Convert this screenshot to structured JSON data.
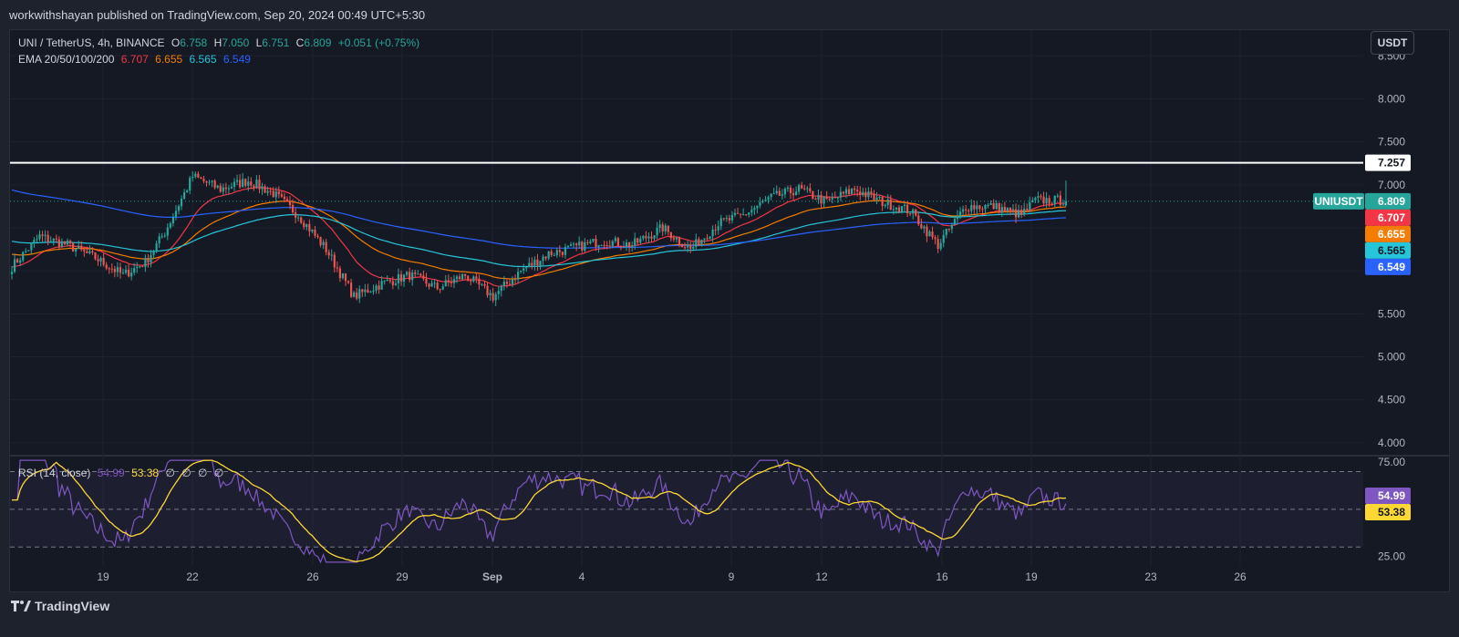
{
  "header": {
    "published": "workwithshayan published on TradingView.com, Sep 20, 2024 00:49 UTC+5:30"
  },
  "legend": {
    "symbol": "UNI / TetherUS, 4h, BINANCE",
    "o_label": "O",
    "open": "6.758",
    "h_label": "H",
    "high": "7.050",
    "l_label": "L",
    "low": "6.751",
    "c_label": "C",
    "close": "6.809",
    "change": "+0.051 (+0.75%)",
    "ema_label": "EMA 20/50/100/200",
    "ema20": "6.707",
    "ema50": "6.655",
    "ema100": "6.565",
    "ema200": "6.549"
  },
  "rsi_legend": {
    "label": "RSI (14, close)",
    "rsi": "54.99",
    "ma": "53.38",
    "extras": [
      "∅",
      "∅",
      "∅",
      "∅"
    ]
  },
  "currency_button": "USDT",
  "brand": "TradingView",
  "colors": {
    "up": "#26a69a",
    "down": "#ef5350",
    "ema20": "#f23645",
    "ema50": "#f57c00",
    "ema100": "#26c6da",
    "ema200": "#2962ff",
    "rsi": "#7e57c2",
    "rsi_ma": "#fdd835"
  },
  "chart_data": [
    {
      "type": "candlestick",
      "symbol": "UNIUSDT",
      "timeframe": "4h",
      "x_ticks": [
        "19",
        "22",
        "26",
        "29",
        "Sep",
        "4",
        "9",
        "12",
        "16",
        "19",
        "23",
        "26"
      ],
      "y_ticks": [
        "4.000",
        "4.500",
        "5.000",
        "5.500",
        "6.000",
        "6.500",
        "7.000",
        "7.500",
        "8.000",
        "8.500"
      ],
      "ylim": [
        3.85,
        8.8
      ],
      "horizontal_line": {
        "value": 7.257,
        "label": "7.257"
      },
      "last_price": {
        "label": "UNIUSDT",
        "value": "6.809"
      },
      "price_labels": [
        "6.707",
        "6.655",
        "6.565",
        "6.549"
      ],
      "anchors": [
        [
          0,
          6.05
        ],
        [
          10,
          6.4
        ],
        [
          20,
          6.3
        ],
        [
          30,
          6.15
        ],
        [
          40,
          5.95
        ],
        [
          48,
          6.1
        ],
        [
          55,
          6.45
        ],
        [
          62,
          6.9
        ],
        [
          65,
          7.1
        ],
        [
          75,
          6.95
        ],
        [
          85,
          7.05
        ],
        [
          94,
          6.9
        ],
        [
          103,
          6.65
        ],
        [
          113,
          6.25
        ],
        [
          123,
          5.7
        ],
        [
          133,
          5.85
        ],
        [
          143,
          5.95
        ],
        [
          153,
          5.8
        ],
        [
          163,
          5.95
        ],
        [
          173,
          5.7
        ],
        [
          183,
          6.0
        ],
        [
          193,
          6.2
        ],
        [
          200,
          6.25
        ],
        [
          212,
          6.35
        ],
        [
          223,
          6.3
        ],
        [
          234,
          6.5
        ],
        [
          244,
          6.25
        ],
        [
          254,
          6.55
        ],
        [
          263,
          6.65
        ],
        [
          273,
          6.85
        ],
        [
          283,
          6.95
        ],
        [
          293,
          6.8
        ],
        [
          303,
          6.95
        ],
        [
          313,
          6.8
        ],
        [
          323,
          6.7
        ],
        [
          333,
          6.3
        ],
        [
          343,
          6.75
        ],
        [
          353,
          6.75
        ],
        [
          363,
          6.65
        ],
        [
          368,
          6.82
        ]
      ]
    },
    {
      "type": "line",
      "name": "RSI (14, close)",
      "y_ticks": [
        "25.00",
        "75.00"
      ],
      "ylim": [
        20,
        78
      ],
      "bands": [
        70,
        50,
        30
      ],
      "last_values": [
        "54.99",
        "53.38"
      ]
    }
  ]
}
